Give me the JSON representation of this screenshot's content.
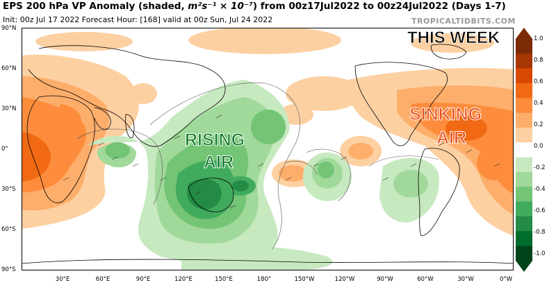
{
  "header": {
    "title_prefix": "EPS 200 hPa VP Anomaly (shaded, ",
    "units": "m²s⁻¹ × 10⁻⁷",
    "title_suffix": ") from 00z17Jul2022 to 00z24Jul2022 (Days 1-7)",
    "subtitle": "Init: 00z Jul 17 2022   Forecast Hour: [168]   valid at 00z Sun, Jul 24 2022",
    "credit": "TROPICALTIDBITS.COM"
  },
  "annotations": {
    "this_week": "THIS WEEK",
    "rising_line1": "RISING",
    "rising_line2": "AIR",
    "sinking_line1": "SINKING",
    "sinking_line2": "AIR"
  },
  "axes": {
    "lat_labels": [
      "90°N",
      "60°N",
      "30°N",
      "0°",
      "30°S",
      "60°S",
      "90°S"
    ],
    "lon_labels": [
      "30°E",
      "60°E",
      "90°E",
      "120°E",
      "150°E",
      "180°",
      "150°W",
      "120°W",
      "90°W",
      "60°W",
      "30°W",
      "0°W"
    ]
  },
  "colorbar": {
    "levels": [
      "1.0",
      "0.8",
      "0.6",
      "0.4",
      "0.2",
      "0.0",
      "-0.2",
      "-0.4",
      "-0.6",
      "-0.8",
      "-1.0"
    ],
    "colors": [
      "#7a2a05",
      "#a63603",
      "#d94801",
      "#f16913",
      "#fd8d3c",
      "#fdae6b",
      "#fdd0a2",
      "#ffffff",
      "#c7e9c0",
      "#a1d99b",
      "#74c476",
      "#41ab5d",
      "#238b45",
      "#006d2c",
      "#00441b"
    ]
  },
  "colors": {
    "sinking_text": "#e8501a",
    "rising_text": "#0f7a2c",
    "land_outline": "#000000"
  }
}
